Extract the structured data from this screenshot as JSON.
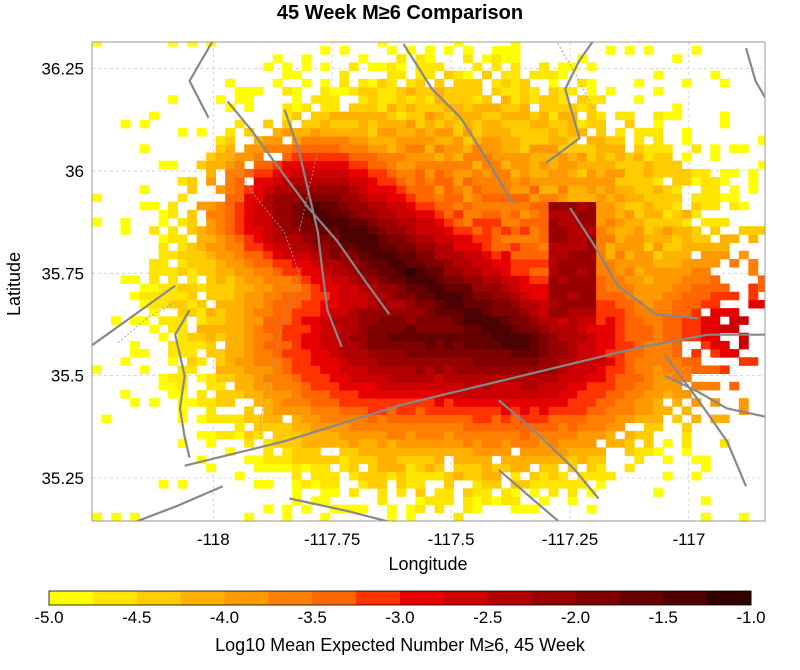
{
  "chart_data": {
    "type": "heatmap",
    "title": "45 Week M≥6 Comparison",
    "xlabel": "Longitude",
    "ylabel": "Latitude",
    "xlim": [
      -118.255,
      -116.84
    ],
    "ylim": [
      35.145,
      36.315
    ],
    "x_ticks": [
      -118,
      -117.75,
      -117.5,
      -117.25,
      -117
    ],
    "x_tick_labels": [
      "-118",
      "-117.75",
      "-117.5",
      "-117.25",
      "-117"
    ],
    "y_ticks": [
      35.25,
      35.5,
      35.75,
      36,
      36.25
    ],
    "y_tick_labels": [
      "35.25",
      "35.5",
      "35.75",
      "36",
      "36.25"
    ],
    "grid": true,
    "colorbar": {
      "label": "Log10 Mean Expected Number M≥6, 45 Week",
      "min": -5.0,
      "max": -1.0,
      "tick_values": [
        -5.0,
        -4.5,
        -4.0,
        -3.5,
        -3.0,
        -2.5,
        -2.0,
        -1.5,
        -1.0
      ],
      "tick_labels": [
        "-5.0",
        "-4.5",
        "-4.0",
        "-3.5",
        "-3.0",
        "-2.5",
        "-2.0",
        "-1.5",
        "-1.0"
      ],
      "colors": [
        "#ffff00",
        "#ffe600",
        "#ffcc00",
        "#ffb300",
        "#ff9900",
        "#ff8000",
        "#ff6600",
        "#ff3300",
        "#e60000",
        "#cc0000",
        "#b30000",
        "#990000",
        "#800000",
        "#660000",
        "#4d0000",
        "#330000"
      ]
    },
    "field": {
      "grid_step_deg": 0.02,
      "coverage_center": [
        -117.5,
        35.72
      ],
      "coverage_radius_deg": [
        0.64,
        0.56
      ],
      "hotspots": [
        {
          "region": "main fault zone",
          "from": [
            -117.78,
            35.9
          ],
          "to": [
            -117.36,
            35.58
          ],
          "peak": -1.3
        },
        {
          "region": "secondary branch",
          "from": [
            -117.62,
            35.6
          ],
          "to": [
            -117.35,
            35.57
          ],
          "peak": -1.6
        },
        {
          "region": "eastern block",
          "lon": [
            -117.3,
            -117.2
          ],
          "lat": [
            35.64,
            35.92
          ],
          "value": -2.2
        },
        {
          "region": "eastern edge",
          "lon": -116.88,
          "lat": 35.61,
          "value": -2.4
        }
      ]
    }
  }
}
